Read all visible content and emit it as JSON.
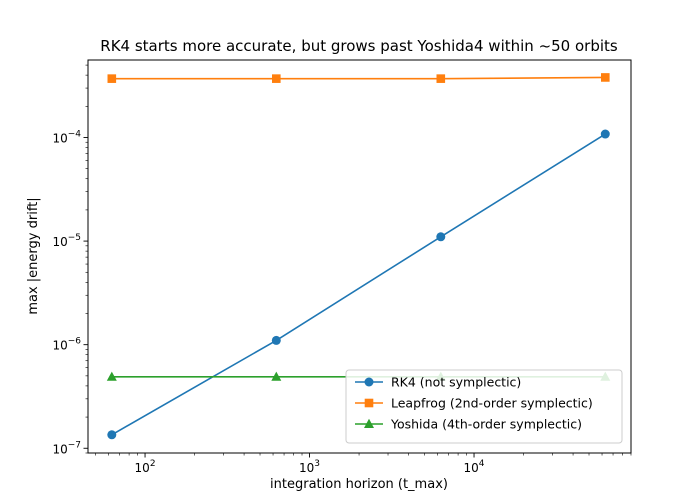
{
  "chart_data": {
    "type": "line",
    "title": "RK4 starts more accurate, but grows past Yoshida4 within ~50 orbits",
    "xlabel": "integration horizon (t_max)",
    "ylabel": "max |energy drift|",
    "xscale": "log",
    "yscale": "log",
    "xlim": [
      45,
      90000
    ],
    "ylim": [
      9e-08,
      0.00056
    ],
    "x": [
      62.8,
      628,
      6280,
      62800
    ],
    "x_ticks": [
      {
        "value": 100,
        "base": "10",
        "exp": "2"
      },
      {
        "value": 1000,
        "base": "10",
        "exp": "3"
      },
      {
        "value": 10000,
        "base": "10",
        "exp": "4"
      }
    ],
    "y_ticks": [
      {
        "value": 1e-07,
        "base": "10",
        "exp": "−7"
      },
      {
        "value": 1e-06,
        "base": "10",
        "exp": "−6"
      },
      {
        "value": 1e-05,
        "base": "10",
        "exp": "−5"
      },
      {
        "value": 0.0001,
        "base": "10",
        "exp": "−4"
      }
    ],
    "grid": false,
    "legend_position": "lower-right",
    "series": [
      {
        "name": "RK4 (not symplectic)",
        "color": "#1f77b4",
        "marker": "circle",
        "values": [
          1.35e-07,
          1.1e-06,
          1.1e-05,
          0.000108
        ]
      },
      {
        "name": "Leapfrog (2nd-order symplectic)",
        "color": "#ff7f0e",
        "marker": "square",
        "values": [
          0.00037,
          0.00037,
          0.00037,
          0.00038
        ]
      },
      {
        "name": "Yoshida (4th-order symplectic)",
        "color": "#2ca02c",
        "marker": "triangle",
        "values": [
          4.9e-07,
          4.9e-07,
          4.9e-07,
          4.9e-07
        ]
      }
    ]
  }
}
